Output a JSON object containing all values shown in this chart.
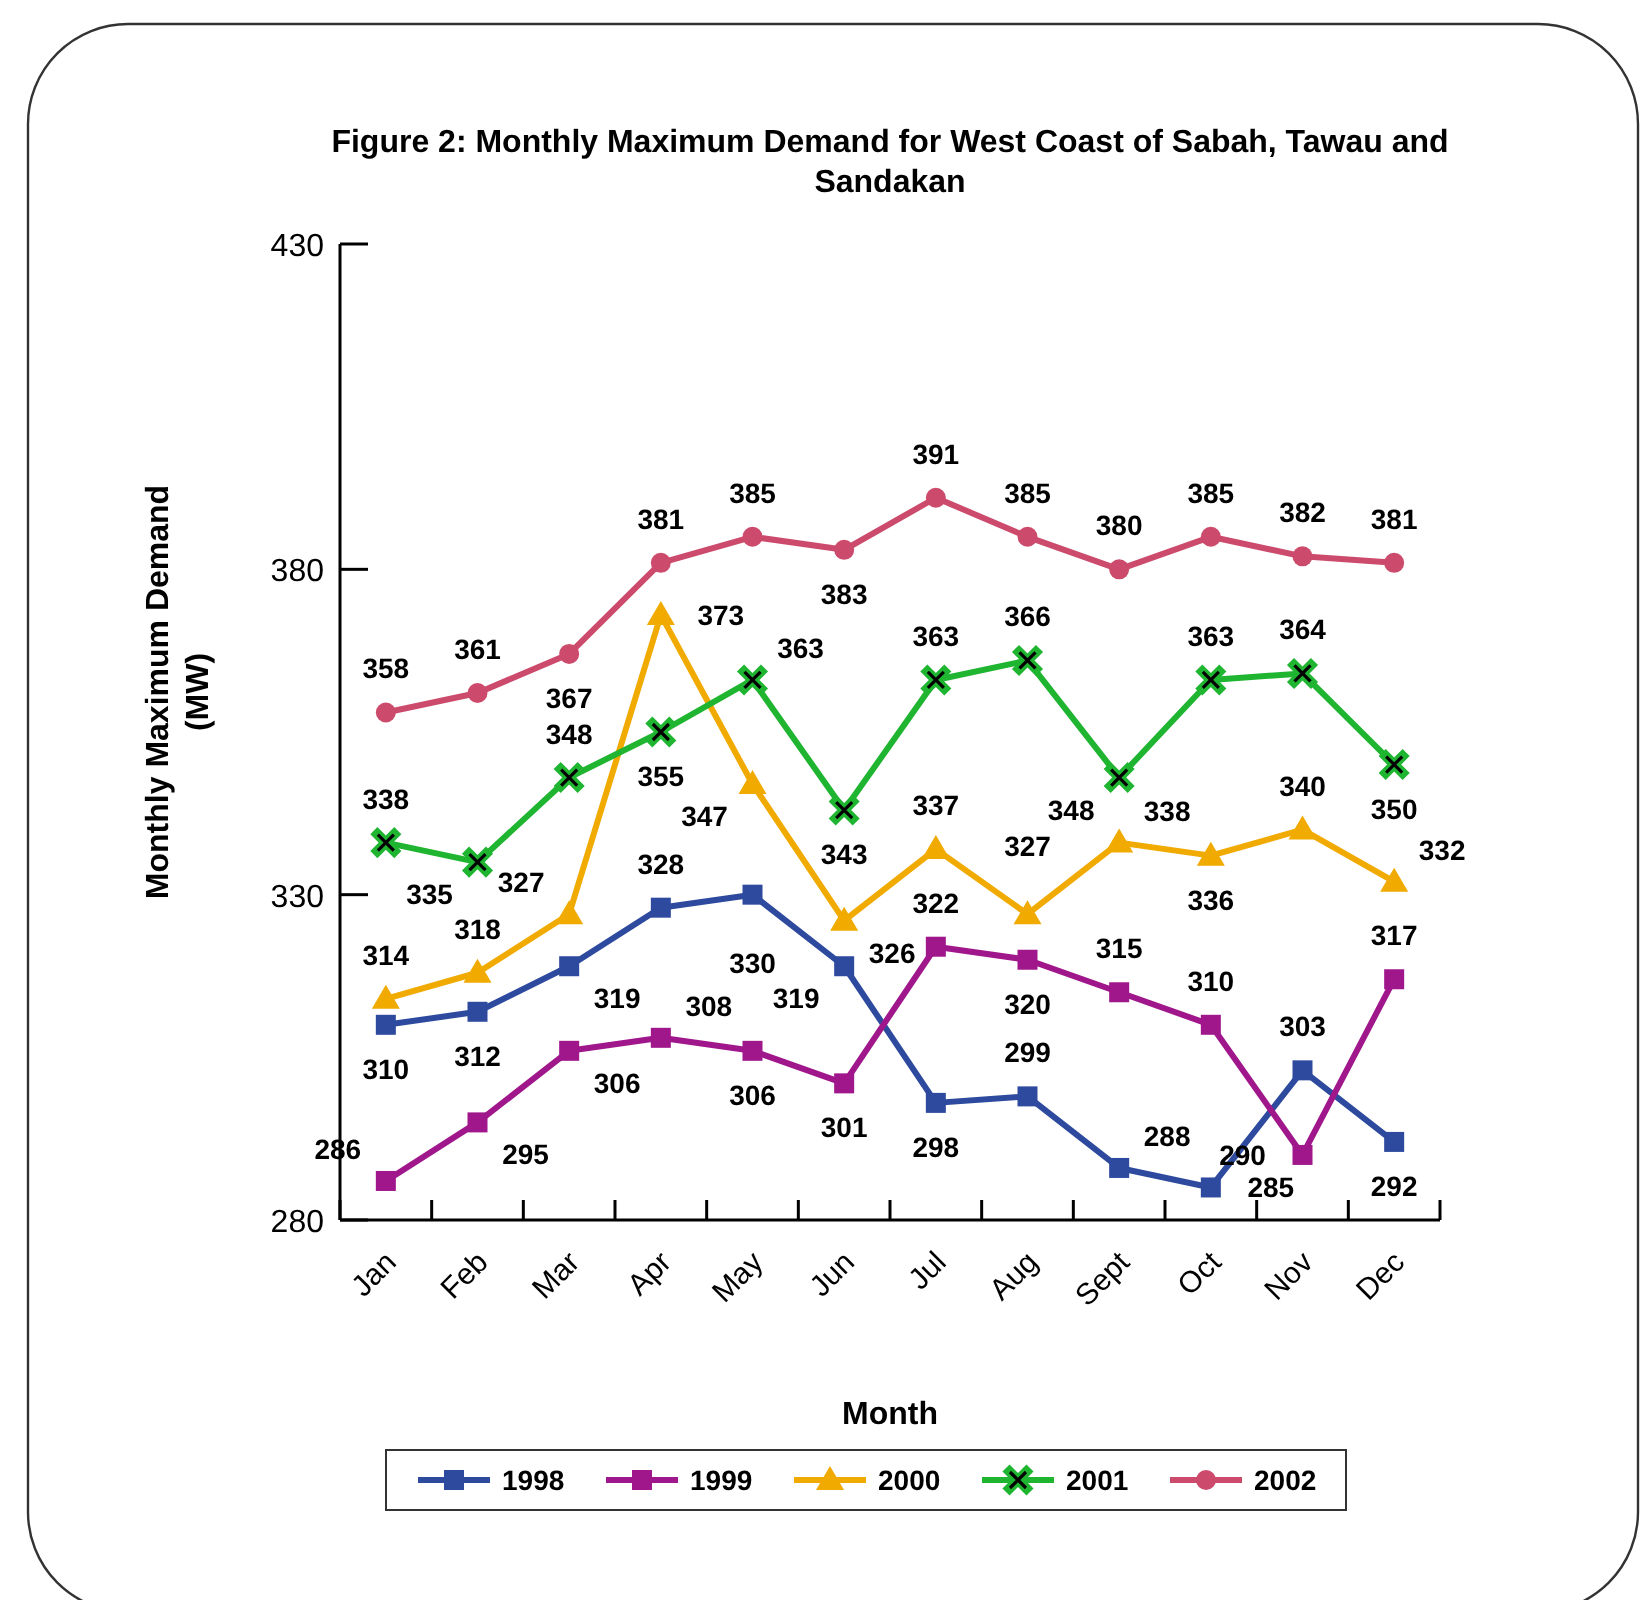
{
  "chart_data": {
    "type": "line",
    "title": "Figure 2: Monthly Maximum Demand for West Coast of Sabah, Tawau and Sandakan",
    "xlabel": "Month",
    "ylabel": "Monthly Maximum Demand (MW)",
    "categories": [
      "Jan",
      "Feb",
      "Mar",
      "Apr",
      "May",
      "Jun",
      "Jul",
      "Aug",
      "Sept",
      "Oct",
      "Nov",
      "Dec"
    ],
    "series": [
      {
        "name": "1998",
        "color": "#2e4a9e",
        "marker": "square",
        "values": [
          310,
          312,
          319,
          328,
          330,
          319,
          298,
          299,
          288,
          285,
          303,
          292
        ]
      },
      {
        "name": "1999",
        "color": "#a0178c",
        "marker": "square",
        "values": [
          286,
          295,
          306,
          308,
          306,
          301,
          322,
          320,
          315,
          310,
          290,
          317
        ]
      },
      {
        "name": "2000",
        "color": "#f0aa00",
        "marker": "triangle",
        "values": [
          314,
          318,
          327,
          373,
          347,
          326,
          337,
          327,
          338,
          336,
          340,
          332
        ]
      },
      {
        "name": "2001",
        "color": "#1fb531",
        "marker": "cross",
        "values": [
          338,
          335,
          348,
          355,
          363,
          343,
          363,
          366,
          348,
          363,
          364,
          350
        ]
      },
      {
        "name": "2002",
        "color": "#cc4b6c",
        "marker": "circle",
        "values": [
          358,
          361,
          367,
          381,
          385,
          383,
          391,
          385,
          380,
          385,
          382,
          381
        ]
      }
    ],
    "ylim": [
      280,
      430
    ],
    "yticks": [
      280,
      330,
      380,
      430
    ],
    "data_labels": true,
    "legend": "bottom",
    "grid": false,
    "line_style": "solid"
  }
}
